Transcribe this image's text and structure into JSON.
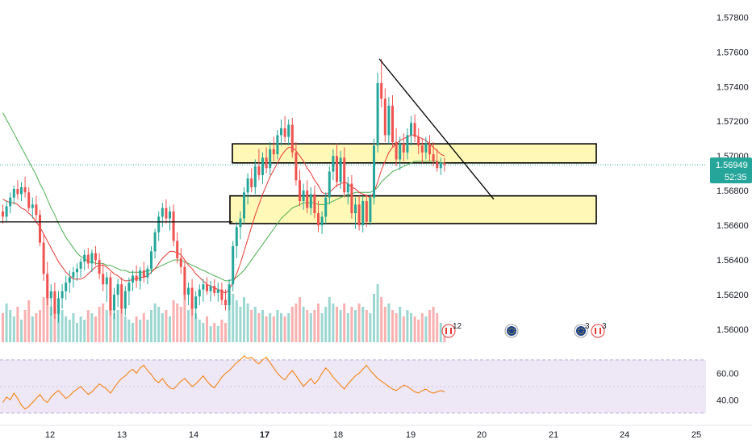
{
  "chart_data": {
    "type": "candlestick",
    "title": "",
    "price_axis": {
      "ticks": [
        1.56,
        1.562,
        1.564,
        1.566,
        1.568,
        1.57,
        1.572,
        1.574,
        1.576,
        1.578
      ],
      "tick_labels": [
        "1.56000",
        "1.56200",
        "1.56400",
        "1.56600",
        "1.56800",
        "1.57000",
        "1.57200",
        "1.57400",
        "1.57600",
        "1.57800"
      ],
      "range": [
        1.5587,
        1.5789
      ]
    },
    "current_price": {
      "value": 1.56949,
      "label": "1.56949",
      "countdown": "52:35"
    },
    "time_axis": {
      "labels": [
        "12",
        "13",
        "14",
        "17",
        "18",
        "19",
        "20",
        "21",
        "24",
        "25"
      ],
      "bold": [
        "17"
      ]
    },
    "candles_ohlc": [
      [
        1.5668,
        1.5672,
        1.5661,
        1.5665
      ],
      [
        1.5665,
        1.5674,
        1.5662,
        1.5671
      ],
      [
        1.5671,
        1.5679,
        1.5667,
        1.5676
      ],
      [
        1.5676,
        1.5683,
        1.5672,
        1.5681
      ],
      [
        1.5681,
        1.5686,
        1.5675,
        1.5678
      ],
      [
        1.5678,
        1.5685,
        1.5674,
        1.5682
      ],
      [
        1.5682,
        1.5688,
        1.5676,
        1.5679
      ],
      [
        1.5679,
        1.5682,
        1.5668,
        1.567
      ],
      [
        1.567,
        1.5676,
        1.5664,
        1.5672
      ],
      [
        1.5672,
        1.5677,
        1.5663,
        1.5666
      ],
      [
        1.5666,
        1.5669,
        1.5648,
        1.565
      ],
      [
        1.565,
        1.5655,
        1.5628,
        1.5632
      ],
      [
        1.5632,
        1.5639,
        1.5614,
        1.5618
      ],
      [
        1.5618,
        1.5626,
        1.5608,
        1.5622
      ],
      [
        1.5622,
        1.5627,
        1.5606,
        1.5609
      ],
      [
        1.5609,
        1.5622,
        1.5604,
        1.5618
      ],
      [
        1.5618,
        1.5626,
        1.5612,
        1.5622
      ],
      [
        1.5622,
        1.5631,
        1.5617,
        1.5627
      ],
      [
        1.5627,
        1.5634,
        1.5621,
        1.563
      ],
      [
        1.563,
        1.5636,
        1.5624,
        1.5633
      ],
      [
        1.5633,
        1.5638,
        1.5628,
        1.5635
      ],
      [
        1.5635,
        1.5641,
        1.563,
        1.5639
      ],
      [
        1.5639,
        1.5646,
        1.5634,
        1.5643
      ],
      [
        1.5643,
        1.5647,
        1.5635,
        1.5638
      ],
      [
        1.5638,
        1.5646,
        1.5633,
        1.5644
      ],
      [
        1.5644,
        1.5648,
        1.5637,
        1.564
      ],
      [
        1.564,
        1.5644,
        1.5629,
        1.5632
      ],
      [
        1.5632,
        1.5638,
        1.5622,
        1.5626
      ],
      [
        1.5626,
        1.5633,
        1.5616,
        1.563
      ],
      [
        1.563,
        1.5633,
        1.5608,
        1.5611
      ],
      [
        1.5611,
        1.5624,
        1.5606,
        1.562
      ],
      [
        1.562,
        1.5629,
        1.5613,
        1.5626
      ],
      [
        1.5626,
        1.563,
        1.5609,
        1.5612
      ],
      [
        1.5612,
        1.5625,
        1.5608,
        1.5622
      ],
      [
        1.5622,
        1.563,
        1.5614,
        1.5627
      ],
      [
        1.5627,
        1.5634,
        1.5622,
        1.5631
      ],
      [
        1.5631,
        1.5637,
        1.5624,
        1.5628
      ],
      [
        1.5628,
        1.5636,
        1.5623,
        1.5634
      ],
      [
        1.5634,
        1.5639,
        1.5627,
        1.563
      ],
      [
        1.563,
        1.5637,
        1.5626,
        1.5635
      ],
      [
        1.5635,
        1.5648,
        1.5632,
        1.5645
      ],
      [
        1.5645,
        1.5658,
        1.5641,
        1.5656
      ],
      [
        1.5656,
        1.5668,
        1.5651,
        1.5665
      ],
      [
        1.5665,
        1.5673,
        1.5659,
        1.567
      ],
      [
        1.567,
        1.5675,
        1.5661,
        1.5664
      ],
      [
        1.5664,
        1.5671,
        1.5657,
        1.5668
      ],
      [
        1.5668,
        1.5672,
        1.5648,
        1.5651
      ],
      [
        1.5651,
        1.5656,
        1.5638,
        1.5641
      ],
      [
        1.5641,
        1.5647,
        1.5632,
        1.5636
      ],
      [
        1.5636,
        1.5639,
        1.5617,
        1.562
      ],
      [
        1.562,
        1.5627,
        1.5614,
        1.5624
      ],
      [
        1.5624,
        1.5629,
        1.5608,
        1.5612
      ],
      [
        1.5612,
        1.5622,
        1.5606,
        1.5619
      ],
      [
        1.5619,
        1.5626,
        1.5614,
        1.5623
      ],
      [
        1.5623,
        1.5629,
        1.5616,
        1.5626
      ],
      [
        1.5626,
        1.563,
        1.562,
        1.5622
      ],
      [
        1.5622,
        1.5628,
        1.5616,
        1.5625
      ],
      [
        1.5625,
        1.5629,
        1.5619,
        1.5621
      ],
      [
        1.5621,
        1.5627,
        1.5616,
        1.5623
      ],
      [
        1.5623,
        1.5627,
        1.5614,
        1.5617
      ],
      [
        1.5617,
        1.5623,
        1.5611,
        1.5614
      ],
      [
        1.5614,
        1.5629,
        1.5611,
        1.5626
      ],
      [
        1.5626,
        1.5651,
        1.5622,
        1.5648
      ],
      [
        1.5648,
        1.5662,
        1.5641,
        1.5659
      ],
      [
        1.5659,
        1.5668,
        1.5652,
        1.5664
      ],
      [
        1.5664,
        1.5682,
        1.5661,
        1.5679
      ],
      [
        1.5679,
        1.569,
        1.5672,
        1.5687
      ],
      [
        1.5687,
        1.5693,
        1.5679,
        1.5682
      ],
      [
        1.5682,
        1.5698,
        1.5678,
        1.5694
      ],
      [
        1.5694,
        1.5704,
        1.5686,
        1.5689
      ],
      [
        1.5689,
        1.5702,
        1.5684,
        1.5699
      ],
      [
        1.5699,
        1.5705,
        1.569,
        1.5693
      ],
      [
        1.5693,
        1.5708,
        1.5689,
        1.5704
      ],
      [
        1.5704,
        1.5711,
        1.5697,
        1.5701
      ],
      [
        1.5701,
        1.5715,
        1.5698,
        1.5712
      ],
      [
        1.5712,
        1.5721,
        1.5706,
        1.5716
      ],
      [
        1.5716,
        1.5723,
        1.5708,
        1.5711
      ],
      [
        1.5711,
        1.5721,
        1.5706,
        1.5718
      ],
      [
        1.5718,
        1.5722,
        1.5699,
        1.5702
      ],
      [
        1.5702,
        1.5708,
        1.5683,
        1.5686
      ],
      [
        1.5686,
        1.5692,
        1.5671,
        1.5674
      ],
      [
        1.5674,
        1.5684,
        1.5669,
        1.568
      ],
      [
        1.568,
        1.5686,
        1.5667,
        1.567
      ],
      [
        1.567,
        1.5682,
        1.5666,
        1.5678
      ],
      [
        1.5678,
        1.5683,
        1.5664,
        1.5667
      ],
      [
        1.5667,
        1.5674,
        1.5656,
        1.566
      ],
      [
        1.566,
        1.5668,
        1.5655,
        1.5665
      ],
      [
        1.5665,
        1.5679,
        1.5661,
        1.5676
      ],
      [
        1.5676,
        1.5694,
        1.5672,
        1.5691
      ],
      [
        1.5691,
        1.5704,
        1.5686,
        1.57
      ],
      [
        1.57,
        1.5707,
        1.5682,
        1.5685
      ],
      [
        1.5685,
        1.5703,
        1.5681,
        1.5699
      ],
      [
        1.5699,
        1.5705,
        1.5676,
        1.5679
      ],
      [
        1.5679,
        1.5688,
        1.5672,
        1.5684
      ],
      [
        1.5684,
        1.5689,
        1.5664,
        1.5667
      ],
      [
        1.5667,
        1.5676,
        1.5658,
        1.5672
      ],
      [
        1.5672,
        1.5677,
        1.5657,
        1.566
      ],
      [
        1.566,
        1.5677,
        1.5656,
        1.5674
      ],
      [
        1.5674,
        1.5678,
        1.5659,
        1.5662
      ],
      [
        1.5662,
        1.5678,
        1.566,
        1.5676
      ],
      [
        1.5676,
        1.571,
        1.5672,
        1.5706
      ],
      [
        1.5706,
        1.5748,
        1.5702,
        1.5742
      ],
      [
        1.5742,
        1.5756,
        1.5728,
        1.5733
      ],
      [
        1.5733,
        1.5739,
        1.5708,
        1.5712
      ],
      [
        1.5712,
        1.5734,
        1.5707,
        1.5729
      ],
      [
        1.5729,
        1.5735,
        1.5705,
        1.5708
      ],
      [
        1.5708,
        1.5716,
        1.5694,
        1.5698
      ],
      [
        1.5698,
        1.5711,
        1.5692,
        1.5707
      ],
      [
        1.5707,
        1.5713,
        1.5697,
        1.5702
      ],
      [
        1.5702,
        1.5716,
        1.5698,
        1.5712
      ],
      [
        1.5712,
        1.5723,
        1.5706,
        1.5719
      ],
      [
        1.5719,
        1.5724,
        1.5708,
        1.5711
      ],
      [
        1.5711,
        1.5716,
        1.5701,
        1.5706
      ],
      [
        1.5706,
        1.571,
        1.5696,
        1.5702
      ],
      [
        1.5702,
        1.5711,
        1.5698,
        1.5707
      ],
      [
        1.5707,
        1.5712,
        1.5697,
        1.5701
      ],
      [
        1.5701,
        1.5708,
        1.5694,
        1.5697
      ],
      [
        1.5697,
        1.5704,
        1.5691,
        1.5693
      ],
      [
        1.5693,
        1.5699,
        1.5689,
        1.5696
      ],
      [
        1.5696,
        1.5699,
        1.5691,
        1.5695
      ]
    ],
    "volume": [
      0.45,
      0.6,
      0.5,
      0.4,
      0.55,
      0.35,
      0.5,
      0.65,
      0.4,
      0.45,
      0.5,
      0.7,
      0.8,
      0.55,
      0.6,
      0.45,
      0.5,
      0.4,
      0.35,
      0.45,
      0.3,
      0.4,
      0.35,
      0.5,
      0.45,
      0.4,
      0.55,
      0.6,
      0.5,
      0.7,
      0.45,
      0.5,
      0.55,
      0.4,
      0.35,
      0.3,
      0.4,
      0.35,
      0.45,
      0.35,
      0.5,
      0.6,
      0.55,
      0.45,
      0.5,
      0.4,
      0.65,
      0.6,
      0.55,
      0.75,
      0.5,
      0.6,
      0.45,
      0.35,
      0.3,
      0.4,
      0.25,
      0.3,
      0.25,
      0.35,
      0.3,
      0.6,
      0.75,
      0.65,
      0.55,
      0.7,
      0.6,
      0.5,
      0.55,
      0.45,
      0.5,
      0.4,
      0.45,
      0.4,
      0.5,
      0.45,
      0.4,
      0.45,
      0.55,
      0.6,
      0.7,
      0.55,
      0.5,
      0.45,
      0.5,
      0.6,
      0.45,
      0.55,
      0.7,
      0.6,
      0.55,
      0.5,
      0.6,
      0.45,
      0.55,
      0.5,
      0.6,
      0.55,
      0.5,
      0.45,
      0.75,
      0.9,
      0.7,
      0.55,
      0.6,
      0.5,
      0.45,
      0.55,
      0.4,
      0.5,
      0.45,
      0.4,
      0.35,
      0.45,
      0.4,
      0.5,
      0.55,
      0.45,
      0.3,
      0.25
    ],
    "ma_fast": [
      1.5675,
      1.5674,
      1.5673,
      1.5673,
      1.5672,
      1.567,
      1.5669,
      1.5667,
      1.5665,
      1.5662,
      1.5659,
      1.5655,
      1.5651,
      1.5647,
      1.5643,
      1.5639,
      1.5636,
      1.5633,
      1.5631,
      1.5629,
      1.5629,
      1.5629,
      1.563,
      1.5632,
      1.5634,
      1.5636,
      1.5637,
      1.5637,
      1.5636,
      1.5634,
      1.5632,
      1.5631,
      1.5629,
      1.5628,
      1.5628,
      1.5629,
      1.5629,
      1.563,
      1.563,
      1.5631,
      1.5633,
      1.5635,
      1.5638,
      1.5641,
      1.5643,
      1.5645,
      1.5645,
      1.5644,
      1.5643,
      1.564,
      1.5637,
      1.5635,
      1.5632,
      1.563,
      1.5628,
      1.5626,
      1.5625,
      1.5624,
      1.5623,
      1.5622,
      1.5621,
      1.5623,
      1.5627,
      1.5632,
      1.5638,
      1.5645,
      1.5652,
      1.5659,
      1.5666,
      1.5672,
      1.5678,
      1.5683,
      1.5688,
      1.5692,
      1.5696,
      1.57,
      1.5703,
      1.5705,
      1.5705,
      1.5703,
      1.57,
      1.5697,
      1.5693,
      1.569,
      1.5686,
      1.5683,
      1.5679,
      1.5678,
      1.5679,
      1.5681,
      1.5683,
      1.5684,
      1.5685,
      1.5684,
      1.5682,
      1.5681,
      1.5679,
      1.5678,
      1.5677,
      1.5676,
      1.5679,
      1.5685,
      1.5692,
      1.5697,
      1.5702,
      1.5705,
      1.5707,
      1.5709,
      1.571,
      1.5711,
      1.5712,
      1.5712,
      1.5711,
      1.571,
      1.5709,
      1.5707,
      1.5705,
      1.5703,
      1.5701,
      1.57
    ],
    "ma_slow": [
      1.5725,
      1.5721,
      1.5717,
      1.5713,
      1.5709,
      1.5705,
      1.5701,
      1.5697,
      1.5693,
      1.5689,
      1.5684,
      1.568,
      1.5675,
      1.567,
      1.5666,
      1.5661,
      1.5657,
      1.5653,
      1.565,
      1.5647,
      1.5644,
      1.5642,
      1.5641,
      1.5639,
      1.5639,
      1.5638,
      1.5638,
      1.5638,
      1.5637,
      1.5637,
      1.5636,
      1.5635,
      1.5634,
      1.5634,
      1.5633,
      1.5633,
      1.5633,
      1.5633,
      1.5633,
      1.5634,
      1.5634,
      1.5635,
      1.5636,
      1.5637,
      1.5638,
      1.5639,
      1.564,
      1.564,
      1.564,
      1.5639,
      1.5638,
      1.5637,
      1.5636,
      1.5635,
      1.5634,
      1.5633,
      1.5632,
      1.5631,
      1.563,
      1.5629,
      1.5628,
      1.5628,
      1.5629,
      1.563,
      1.5632,
      1.5634,
      1.5637,
      1.564,
      1.5643,
      1.5646,
      1.5649,
      1.5652,
      1.5655,
      1.5658,
      1.5661,
      1.5664,
      1.5666,
      1.5668,
      1.567,
      1.5671,
      1.5672,
      1.5673,
      1.5673,
      1.5673,
      1.5673,
      1.5672,
      1.5672,
      1.5672,
      1.5673,
      1.5674,
      1.5675,
      1.5676,
      1.5677,
      1.5678,
      1.5678,
      1.5679,
      1.5679,
      1.5679,
      1.5679,
      1.5679,
      1.568,
      1.5682,
      1.5685,
      1.5687,
      1.5689,
      1.5691,
      1.5692,
      1.5693,
      1.5694,
      1.5695,
      1.5696,
      1.5697,
      1.5697,
      1.5697,
      1.5697,
      1.5697,
      1.5697,
      1.5697,
      1.5696,
      1.5696
    ],
    "rsi": {
      "ticks": [
        40,
        60
      ],
      "tick_labels": [
        "40.00",
        "60.00"
      ],
      "bands": [
        30,
        70
      ],
      "range": [
        25,
        76
      ],
      "values": [
        38,
        42,
        40,
        45,
        41,
        36,
        33,
        35,
        38,
        41,
        44,
        40,
        38,
        42,
        45,
        47,
        44,
        41,
        43,
        46,
        48,
        50,
        47,
        44,
        46,
        49,
        52,
        50,
        48,
        45,
        49,
        53,
        56,
        58,
        61,
        63,
        60,
        64,
        66,
        62,
        59,
        55,
        53,
        56,
        52,
        49,
        48,
        51,
        54,
        56,
        53,
        50,
        52,
        55,
        58,
        54,
        51,
        49,
        53,
        57,
        60,
        62,
        65,
        68,
        70,
        73,
        71,
        72,
        69,
        67,
        70,
        72,
        68,
        64,
        60,
        57,
        55,
        59,
        62,
        58,
        54,
        50,
        53,
        56,
        52,
        55,
        60,
        64,
        61,
        57,
        54,
        51,
        48,
        52,
        55,
        58,
        60,
        63,
        66,
        62,
        59,
        56,
        54,
        52,
        50,
        48,
        47,
        49,
        51,
        50,
        48,
        46,
        45,
        47,
        48,
        46,
        45,
        46,
        47,
        46
      ]
    },
    "zones": [
      {
        "from": 1.5696,
        "to": 1.5707
      },
      {
        "from": 1.5661,
        "to": 1.5677
      }
    ],
    "horizontal_line": {
      "price": 1.5662
    },
    "trendline": {
      "from_price": 1.5756,
      "to_price": 1.5675
    },
    "events": [
      {
        "label": "12",
        "type": "flags"
      },
      {
        "label": "",
        "type": "globe"
      },
      {
        "label": "3",
        "type": "globe"
      },
      {
        "label": "3",
        "type": "flags"
      }
    ],
    "colors": {
      "up": "#26a69a",
      "down": "#ef5350",
      "ma_fast": "#e53935",
      "ma_slow": "#4caf50",
      "rsi_line": "#f57c00",
      "rsi_band": "#ede7f6",
      "zone_fill": "#fff59d",
      "price_tag": "#26a69a"
    }
  }
}
